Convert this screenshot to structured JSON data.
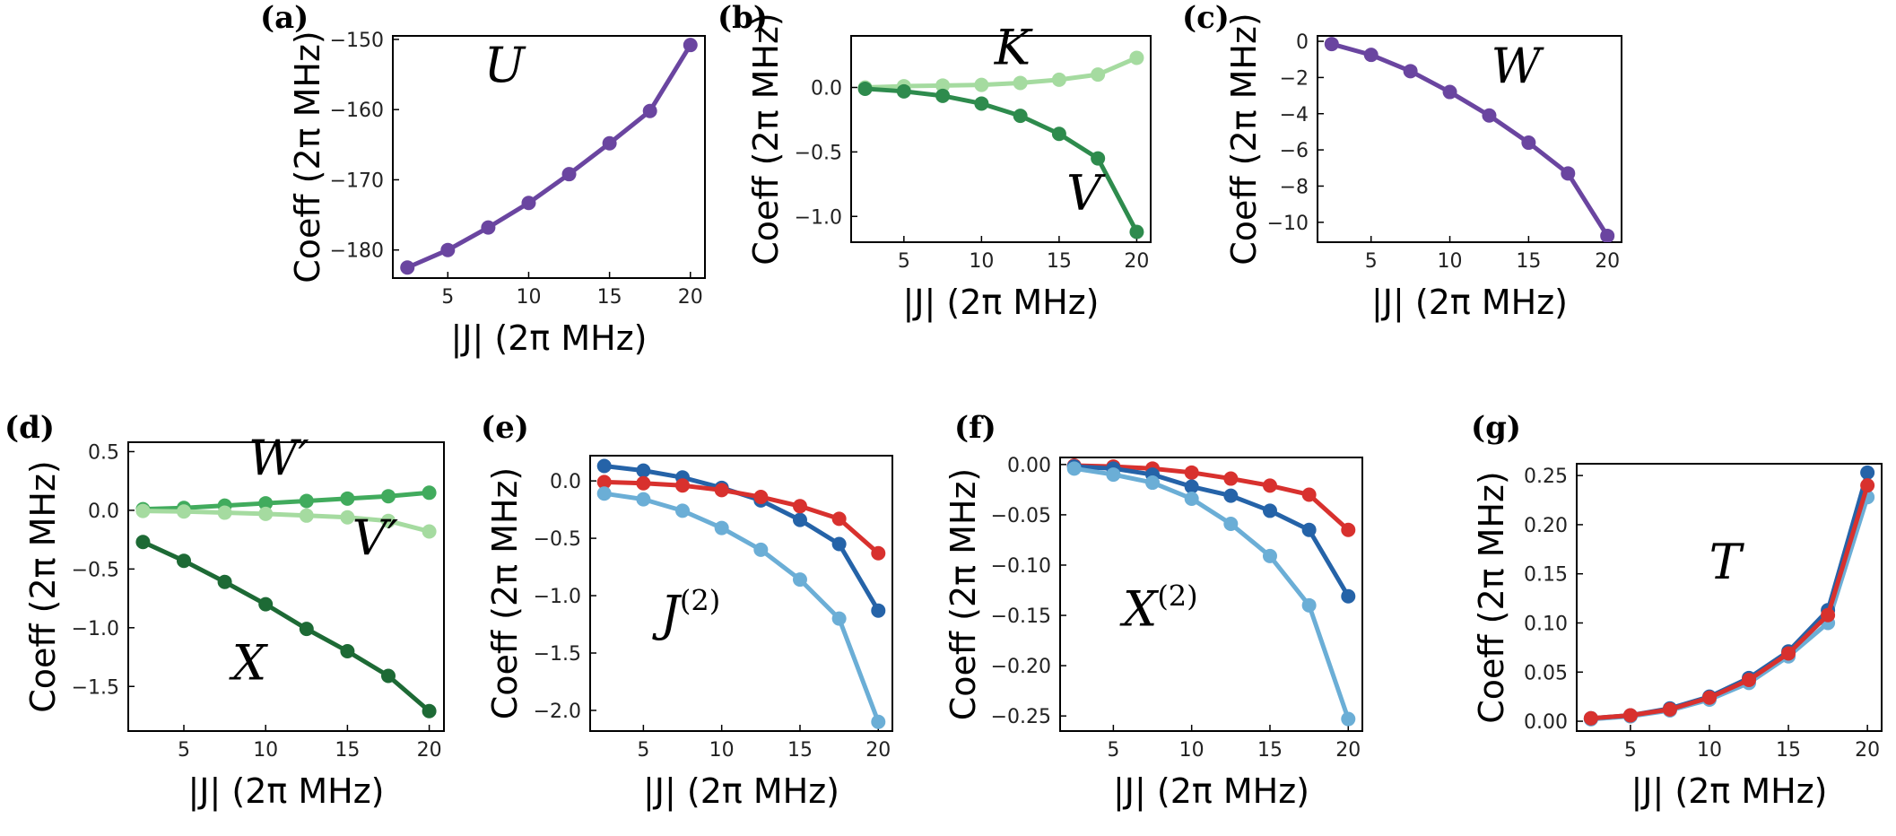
{
  "chart_data": [
    {
      "panel": "(a)",
      "type": "line",
      "xlabel": "|J| (2π MHz)",
      "ylabel": "Coeff (2π MHz)",
      "xlim": [
        1.6,
        20.9
      ],
      "ylim": [
        -184,
        -149.5
      ],
      "xticks": [
        5,
        10,
        15,
        20
      ],
      "yticks": [
        -180,
        -170,
        -160,
        -150
      ],
      "x": [
        2.5,
        5,
        7.5,
        10,
        12.5,
        15,
        17.5,
        20
      ],
      "series": [
        {
          "name": "U",
          "color": "#6a45a0",
          "values": [
            -182.5,
            -180.0,
            -176.8,
            -173.3,
            -169.2,
            -164.8,
            -160.2,
            -150.8
          ]
        }
      ],
      "annotations": [
        {
          "text": "U",
          "x": 8.5,
          "y": -156
        }
      ]
    },
    {
      "panel": "(b)",
      "type": "line",
      "xlabel": "|J| (2π MHz)",
      "ylabel": "Coeff (2π MHz)",
      "xlim": [
        1.6,
        20.9
      ],
      "ylim": [
        -1.2,
        0.4
      ],
      "xticks": [
        5,
        10,
        15,
        20
      ],
      "yticks": [
        0.0,
        -0.5,
        -1.0
      ],
      "x": [
        2.5,
        5,
        7.5,
        10,
        12.5,
        15,
        17.5,
        20
      ],
      "series": [
        {
          "name": "K",
          "color": "#a5dba0",
          "values": [
            0.0,
            0.01,
            0.015,
            0.02,
            0.035,
            0.06,
            0.1,
            0.23
          ]
        },
        {
          "name": "V",
          "color": "#2e8b4d",
          "values": [
            -0.01,
            -0.03,
            -0.065,
            -0.125,
            -0.22,
            -0.36,
            -0.55,
            -1.12
          ]
        }
      ],
      "annotations": [
        {
          "text": "K",
          "x": 12.0,
          "y": 0.18
        },
        {
          "text": "V",
          "x": 16.6,
          "y": -0.95
        }
      ]
    },
    {
      "panel": "(c)",
      "type": "line",
      "xlabel": "|J| (2π MHz)",
      "ylabel": "Coeff (2π MHz)",
      "xlim": [
        1.6,
        20.9
      ],
      "ylim": [
        -11.1,
        0.3
      ],
      "xticks": [
        5,
        10,
        15,
        20
      ],
      "yticks": [
        0,
        -2,
        -4,
        -6,
        -8,
        -10
      ],
      "x": [
        2.5,
        5,
        7.5,
        10,
        12.5,
        15,
        17.5,
        20
      ],
      "series": [
        {
          "name": "W",
          "color": "#6a45a0",
          "values": [
            -0.15,
            -0.75,
            -1.65,
            -2.8,
            -4.1,
            -5.6,
            -7.3,
            -10.75
          ]
        }
      ],
      "annotations": [
        {
          "text": "W",
          "x": 14.2,
          "y": -2.3
        }
      ]
    },
    {
      "panel": "(d)",
      "type": "line",
      "xlabel": "|J| (2π MHz)",
      "ylabel": "Coeff (2π MHz)",
      "xlim": [
        1.6,
        20.9
      ],
      "ylim": [
        -1.88,
        0.58
      ],
      "xticks": [
        5,
        10,
        15,
        20
      ],
      "yticks": [
        0.5,
        0.0,
        -0.5,
        -1.0,
        -1.5
      ],
      "x": [
        2.5,
        5,
        7.5,
        10,
        12.5,
        15,
        17.5,
        20
      ],
      "series": [
        {
          "name": "W'",
          "color": "#41ab5d",
          "values": [
            0.01,
            0.02,
            0.04,
            0.06,
            0.08,
            0.1,
            0.12,
            0.15
          ]
        },
        {
          "name": "V'",
          "color": "#a5dba0",
          "values": [
            -0.005,
            -0.01,
            -0.02,
            -0.03,
            -0.045,
            -0.06,
            -0.09,
            -0.18
          ]
        },
        {
          "name": "X",
          "color": "#1d6a35",
          "values": [
            -0.27,
            -0.43,
            -0.61,
            -0.8,
            -1.01,
            -1.2,
            -1.41,
            -1.71
          ]
        }
      ],
      "annotations": [
        {
          "text": "W′",
          "x": 10.8,
          "y": 0.3
        },
        {
          "text": "V′",
          "x": 16.7,
          "y": -0.38
        },
        {
          "text": "X",
          "x": 9.0,
          "y": -1.44
        }
      ]
    },
    {
      "panel": "(e)",
      "type": "line",
      "xlabel": "|J| (2π MHz)",
      "ylabel": "Coeff (2π MHz)",
      "xlim": [
        1.6,
        20.9
      ],
      "ylim": [
        -2.18,
        0.22
      ],
      "xticks": [
        5,
        10,
        15,
        20
      ],
      "yticks": [
        0.0,
        -0.5,
        -1.0,
        -1.5,
        -2.0
      ],
      "x": [
        2.5,
        5,
        7.5,
        10,
        12.5,
        15,
        17.5,
        20
      ],
      "series": [
        {
          "name": "dark blue",
          "color": "#2563a8",
          "values": [
            0.13,
            0.09,
            0.03,
            -0.06,
            -0.17,
            -0.34,
            -0.55,
            -1.13
          ]
        },
        {
          "name": "red",
          "color": "#d8312e",
          "values": [
            -0.01,
            -0.02,
            -0.04,
            -0.08,
            -0.14,
            -0.22,
            -0.33,
            -0.63
          ]
        },
        {
          "name": "light blue",
          "color": "#6baed6",
          "values": [
            -0.11,
            -0.16,
            -0.26,
            -0.41,
            -0.6,
            -0.86,
            -1.2,
            -2.1
          ]
        }
      ],
      "annotations": [
        {
          "text": "J",
          "sup": "(2)",
          "x": 8.0,
          "y": -1.3
        }
      ]
    },
    {
      "panel": "(f)",
      "type": "line",
      "xlabel": "|J| (2π MHz)",
      "ylabel": "Coeff (2π MHz)",
      "xlim": [
        1.6,
        20.9
      ],
      "ylim": [
        -0.265,
        0.007
      ],
      "xticks": [
        5,
        10,
        15,
        20
      ],
      "yticks": [
        0.0,
        -0.05,
        -0.1,
        -0.15,
        -0.2,
        -0.25
      ],
      "x": [
        2.5,
        5,
        7.5,
        10,
        12.5,
        15,
        17.5,
        20
      ],
      "series": [
        {
          "name": "red",
          "color": "#d8312e",
          "values": [
            -0.001,
            -0.002,
            -0.004,
            -0.008,
            -0.014,
            -0.021,
            -0.03,
            -0.065
          ]
        },
        {
          "name": "dark blue",
          "color": "#2563a8",
          "values": [
            -0.002,
            -0.004,
            -0.01,
            -0.022,
            -0.031,
            -0.046,
            -0.065,
            -0.131
          ]
        },
        {
          "name": "light blue",
          "color": "#6baed6",
          "values": [
            -0.004,
            -0.01,
            -0.018,
            -0.034,
            -0.059,
            -0.091,
            -0.14,
            -0.253
          ]
        }
      ],
      "annotations": [
        {
          "text": "X",
          "sup": "(2)",
          "x": 8.0,
          "y": -0.16
        }
      ]
    },
    {
      "panel": "(g)",
      "type": "line",
      "xlabel": "|J| (2π MHz)",
      "ylabel": "Coeff (2π MHz)",
      "xlim": [
        1.6,
        20.9
      ],
      "ylim": [
        -0.01,
        0.262
      ],
      "xticks": [
        5,
        10,
        15,
        20
      ],
      "yticks": [
        0.0,
        0.05,
        0.1,
        0.15,
        0.2,
        0.25
      ],
      "x": [
        2.5,
        5,
        7.5,
        10,
        12.5,
        15,
        17.5,
        20
      ],
      "series": [
        {
          "name": "light blue",
          "color": "#6baed6",
          "values": [
            0.002,
            0.005,
            0.011,
            0.022,
            0.039,
            0.066,
            0.1,
            0.228
          ]
        },
        {
          "name": "dark blue",
          "color": "#2563a8",
          "values": [
            0.003,
            0.006,
            0.013,
            0.025,
            0.044,
            0.071,
            0.113,
            0.253
          ]
        },
        {
          "name": "red",
          "color": "#d8312e",
          "values": [
            0.003,
            0.006,
            0.012,
            0.024,
            0.042,
            0.069,
            0.108,
            0.24
          ]
        }
      ],
      "annotations": [
        {
          "text": "T",
          "x": 11.0,
          "y": 0.145
        }
      ]
    }
  ]
}
